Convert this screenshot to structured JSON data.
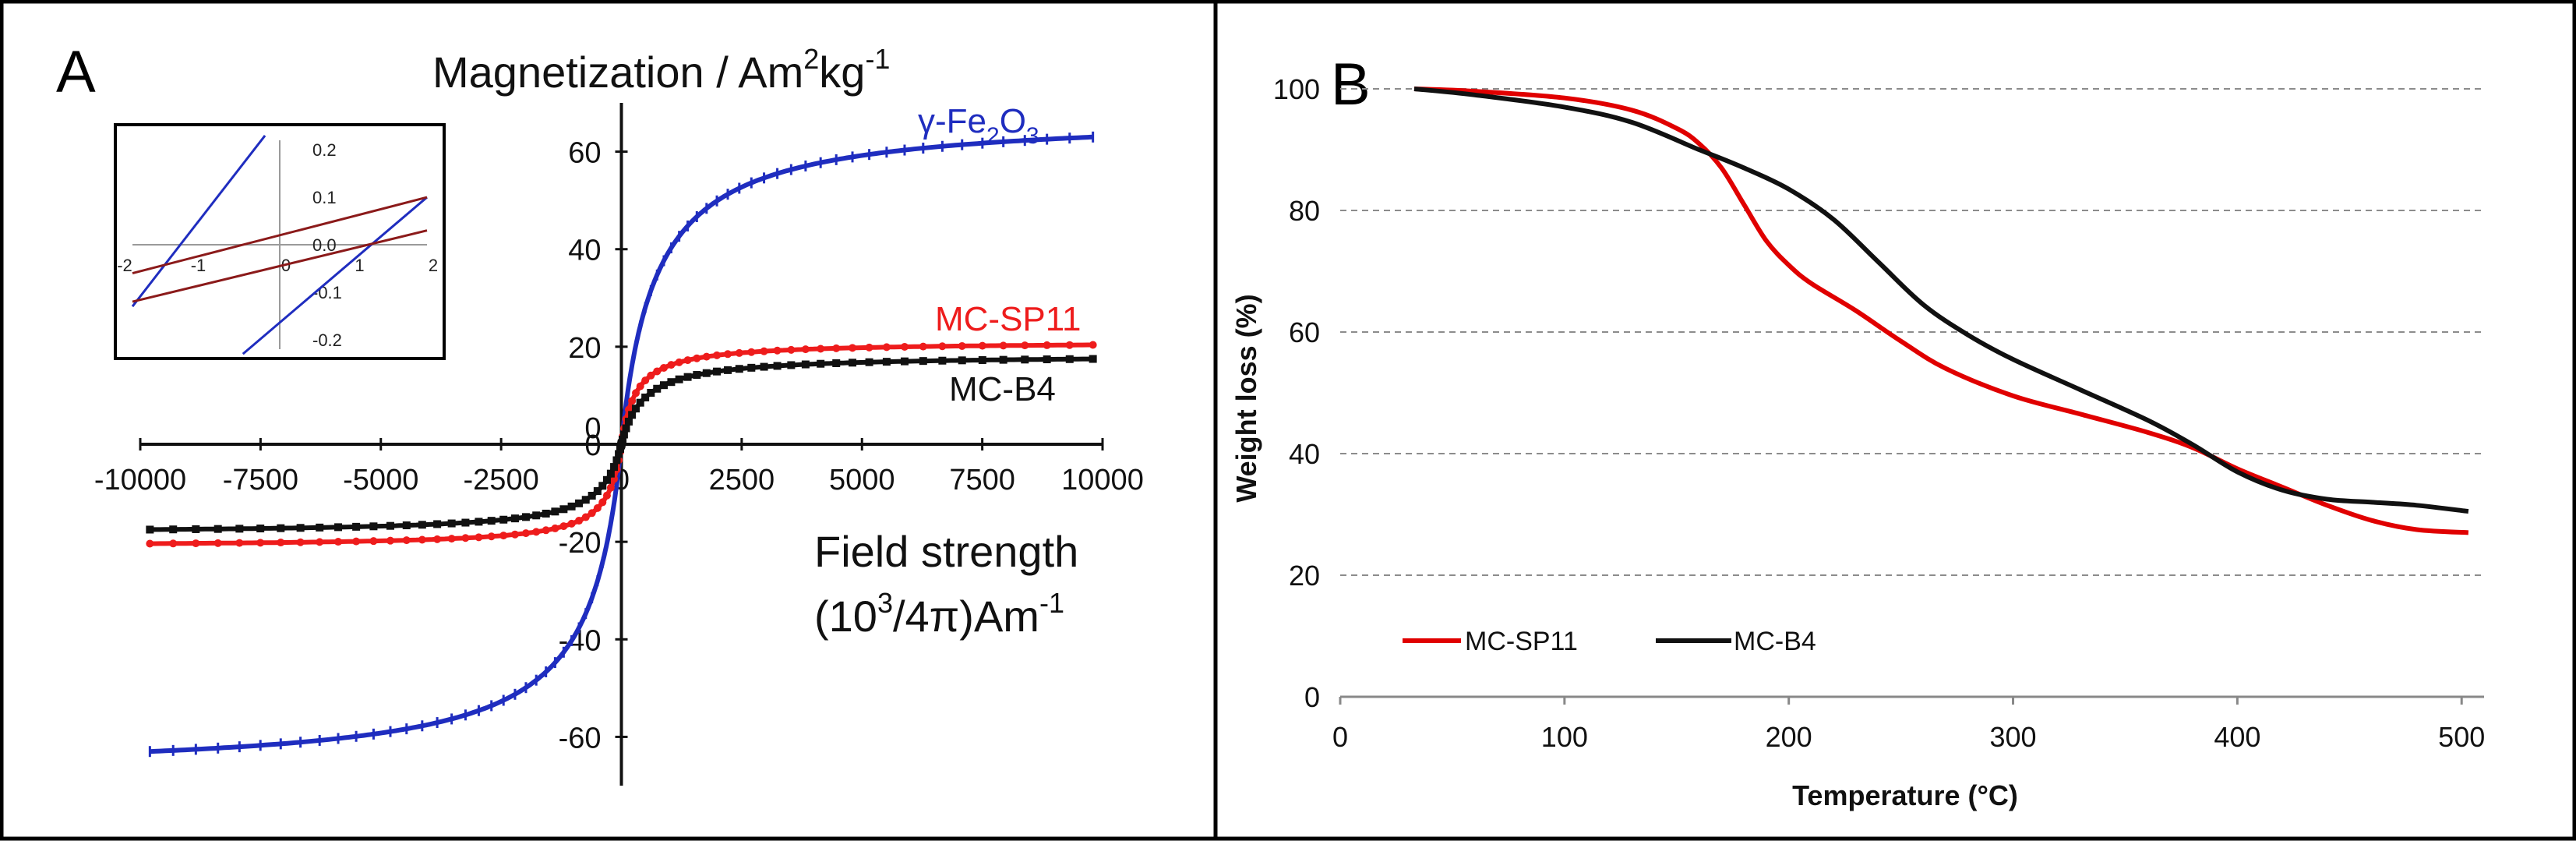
{
  "panels": {
    "a": {
      "label": "A"
    },
    "b": {
      "label": "B"
    }
  },
  "colors": {
    "blue": "#1f2dbf",
    "red": "#ee1c1c",
    "black": "#111111",
    "dark_red": "#8b1a1a",
    "tga_red": "#e00000",
    "grid": "#8c8c8c"
  },
  "chart_data": [
    {
      "id": "magnetization",
      "type": "line",
      "title": {
        "main": "Magnetization / Am",
        "sup1": "2",
        "mid": "kg",
        "sup2": "-1"
      },
      "xlabel": {
        "line1": "Field strength",
        "l2a": "(10",
        "l2sup": "3",
        "l2b": "/4π)Am",
        "l2sup2": "-1"
      },
      "xlim": [
        -10000,
        10000
      ],
      "ylim": [
        -70,
        70
      ],
      "xticks": [
        "-10000",
        "-7500",
        "-5000",
        "-2500",
        "0",
        "2500",
        "5000",
        "7500",
        "10000"
      ],
      "yticks": [
        "-60",
        "-40",
        "-20",
        "0",
        "20",
        "40",
        "60"
      ],
      "series": [
        {
          "name": "γ-Fe2O3",
          "label": {
            "pre": "γ-Fe",
            "sub1": "2",
            "mid": "O",
            "sub2": "3"
          },
          "color": "blue",
          "Ms": 67.5,
          "H0": 700,
          "marker": "tick"
        },
        {
          "name": "MC-SP11",
          "label": {
            "pre": "MC-SP11"
          },
          "color": "red",
          "Ms": 21.0,
          "H0": 300,
          "marker": "dot"
        },
        {
          "name": "MC-B4",
          "label": {
            "pre": "MC-B4"
          },
          "color": "black",
          "Ms": 18.3,
          "H0": 450,
          "marker": "square"
        }
      ],
      "inset": {
        "xlim": [
          -2,
          2
        ],
        "ylim": [
          -0.22,
          0.22
        ],
        "xticks": [
          "-2",
          "-1",
          "0",
          "1",
          "2"
        ],
        "yticks": [
          "0.2",
          "0.1",
          "0.0",
          "-0.1",
          "-0.2"
        ],
        "lines": [
          {
            "color": "blue",
            "x1": -2,
            "y1": -0.13,
            "x2": -0.2,
            "y2": 0.23
          },
          {
            "color": "blue",
            "x1": -0.5,
            "y1": -0.23,
            "x2": 2,
            "y2": 0.1
          },
          {
            "color": "dark_red",
            "x1": -2,
            "y1": -0.06,
            "x2": 2,
            "y2": 0.1
          },
          {
            "color": "dark_red",
            "x1": -2,
            "y1": -0.12,
            "x2": 2,
            "y2": 0.03
          }
        ]
      }
    },
    {
      "id": "tga",
      "type": "line",
      "title": "",
      "xlabel": "Temperature (°C)",
      "ylabel": "Weight loss (%)",
      "xlim": [
        0,
        510
      ],
      "ylim": [
        0,
        100
      ],
      "xticks": [
        "0",
        "100",
        "200",
        "300",
        "400",
        "500"
      ],
      "yticks": [
        "0",
        "20",
        "40",
        "60",
        "80",
        "100"
      ],
      "grid": true,
      "legend": "bottom-left",
      "series": [
        {
          "name": "MC-SP11",
          "color": "tga_red",
          "x": [
            33,
            60,
            100,
            130,
            150,
            160,
            170,
            180,
            190,
            200,
            210,
            230,
            250,
            270,
            300,
            330,
            360,
            380,
            400,
            420,
            440,
            460,
            480,
            503
          ],
          "y": [
            100,
            99.6,
            98.5,
            96.5,
            93.5,
            91,
            87,
            81,
            75,
            71,
            68,
            63.5,
            58.5,
            54,
            49.5,
            46.5,
            43.5,
            41,
            37.5,
            34.5,
            31.5,
            29,
            27.5,
            27
          ]
        },
        {
          "name": "MC-B4",
          "color": "black",
          "x": [
            33,
            60,
            100,
            130,
            160,
            180,
            200,
            220,
            240,
            260,
            280,
            300,
            330,
            360,
            380,
            400,
            420,
            440,
            460,
            480,
            503
          ],
          "y": [
            100,
            99,
            97,
            94.5,
            90,
            87,
            83.5,
            78.5,
            71.5,
            64.5,
            59.5,
            55.5,
            50.5,
            45.5,
            41.5,
            37,
            34,
            32.5,
            32,
            31.5,
            30.5
          ]
        }
      ]
    }
  ]
}
